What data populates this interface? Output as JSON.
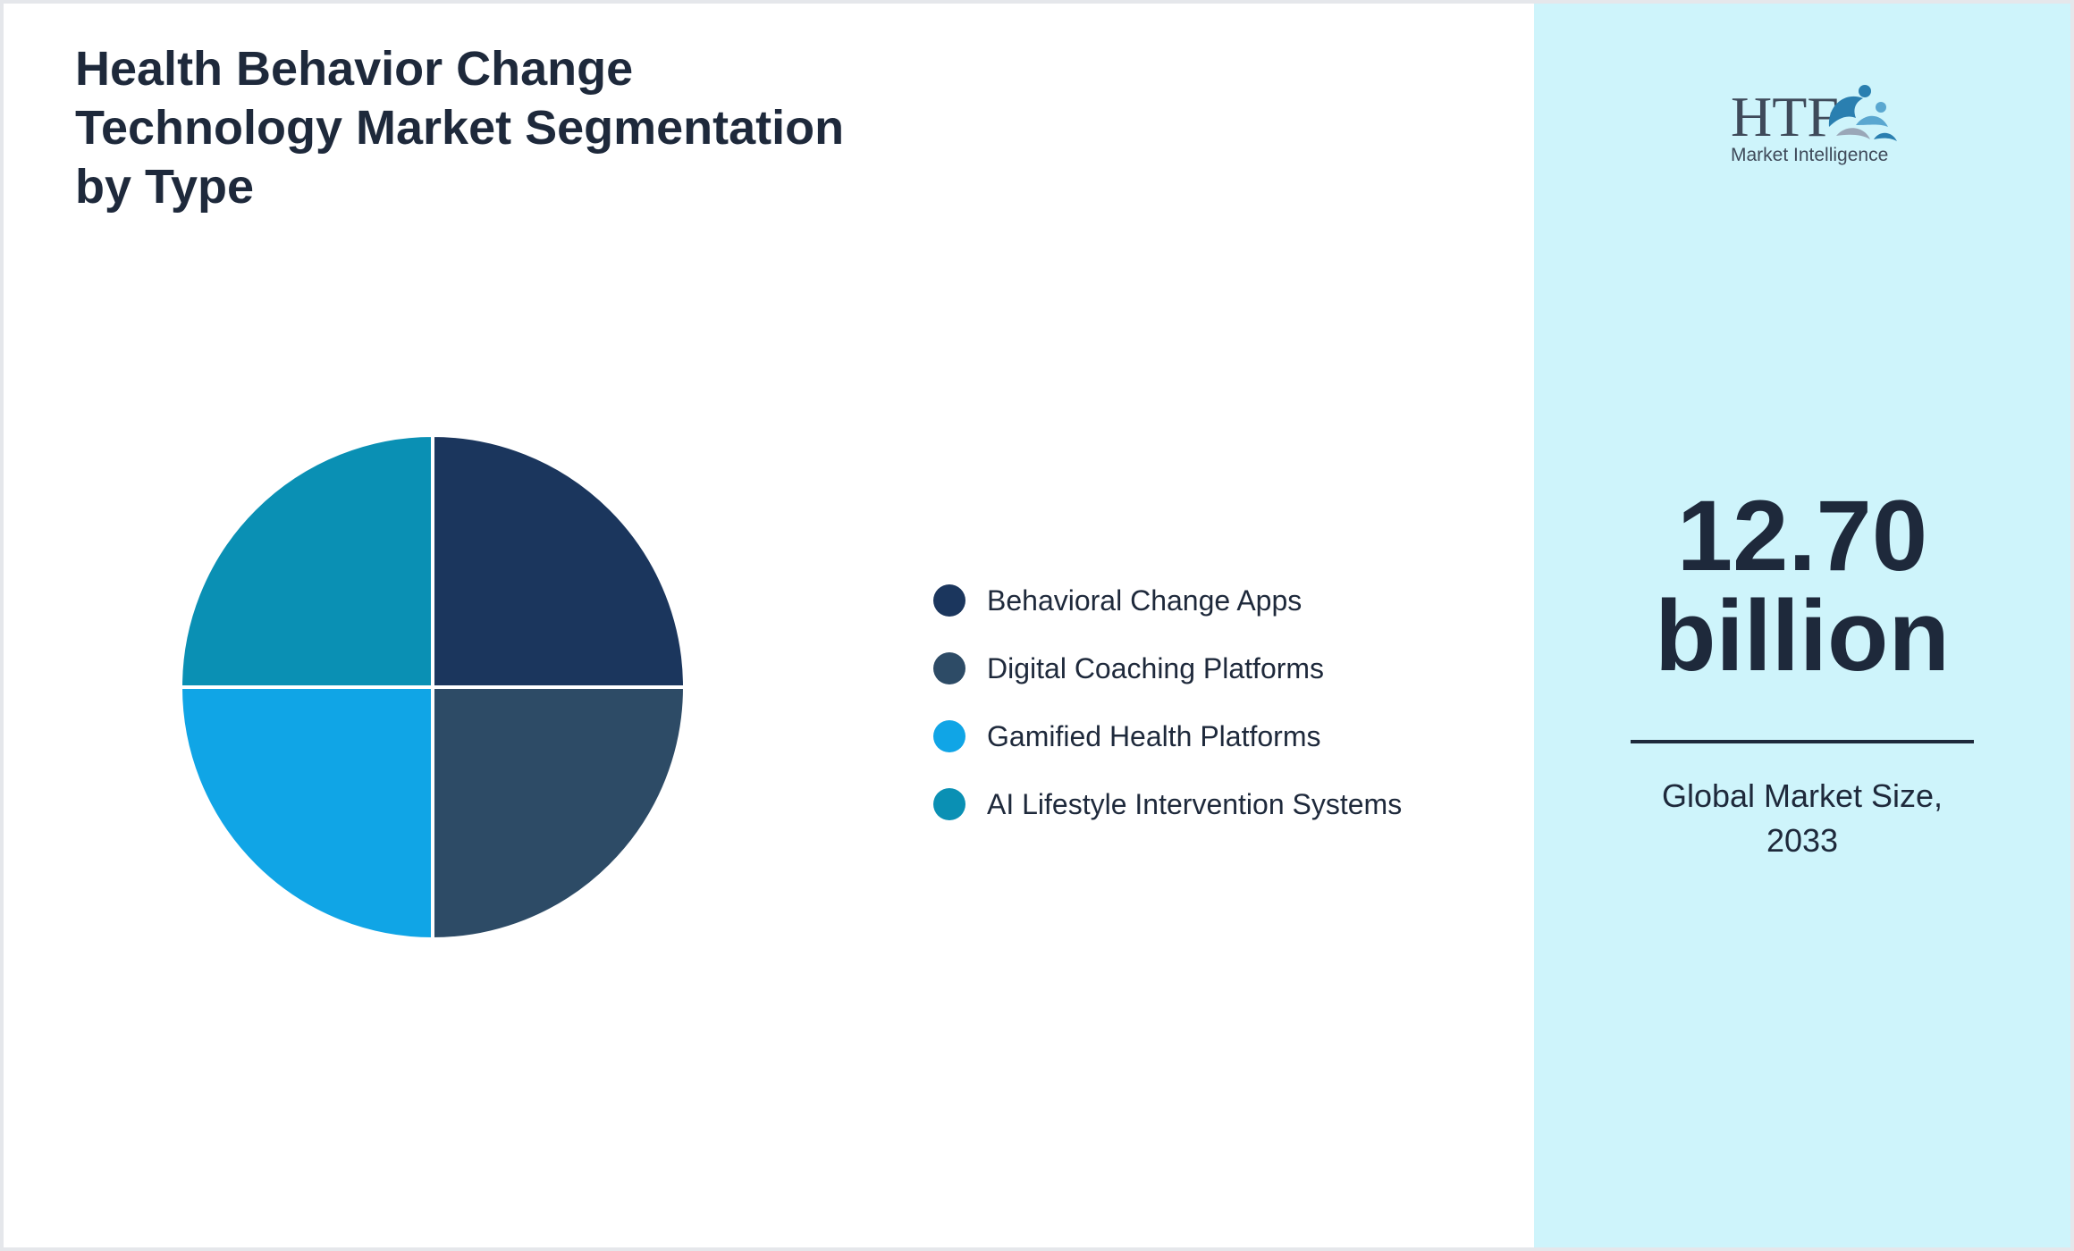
{
  "title_lines": [
    "Health Behavior Change",
    "Technology Market Segmentation",
    "by Type"
  ],
  "chart_data": {
    "type": "pie",
    "title": "Health Behavior Change Technology Market Segmentation by Type",
    "categories": [
      "Behavioral Change Apps",
      "Digital Coaching Platforms",
      "Gamified Health Platforms",
      "AI Lifestyle Intervention Systems"
    ],
    "values": [
      25,
      25,
      25,
      25
    ],
    "colors": [
      "#1b365d",
      "#2d4b66",
      "#10a5e6",
      "#0a90b4"
    ],
    "legend_position": "right"
  },
  "summary": {
    "value_number": "12.70",
    "value_unit": "billion",
    "caption_lines": [
      "Global Market Size,",
      "2033"
    ]
  },
  "logo": {
    "letters": "HTF",
    "tagline": "Market Intelligence"
  }
}
